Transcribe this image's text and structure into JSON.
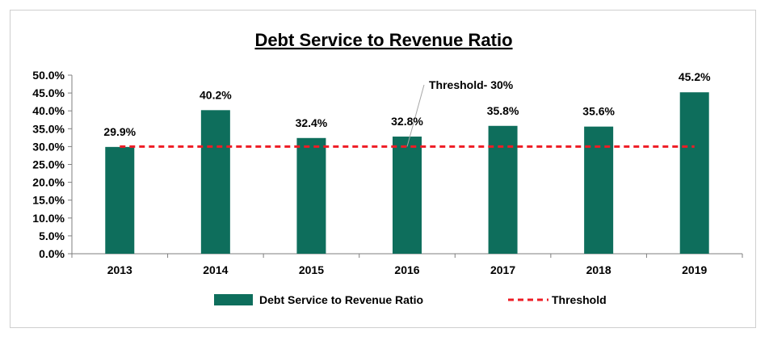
{
  "chart_data": {
    "type": "bar",
    "title": "Debt Service to Revenue Ratio",
    "categories": [
      "2013",
      "2014",
      "2015",
      "2016",
      "2017",
      "2018",
      "2019"
    ],
    "series": [
      {
        "name": "Debt Service to Revenue Ratio",
        "values": [
          29.9,
          40.2,
          32.4,
          32.8,
          35.8,
          35.6,
          45.2
        ],
        "labels": [
          "29.9%",
          "40.2%",
          "32.4%",
          "32.8%",
          "35.8%",
          "35.6%",
          "45.2%"
        ],
        "color": "#0e6e5c"
      }
    ],
    "threshold": {
      "name": "Threshold",
      "value": 30,
      "color": "#ee1c25",
      "style": "dashed"
    },
    "annotation": "Threshold- 30%",
    "ylim": [
      0,
      50
    ],
    "yticks": [
      "0.0%",
      "5.0%",
      "10.0%",
      "15.0%",
      "20.0%",
      "25.0%",
      "30.0%",
      "35.0%",
      "40.0%",
      "45.0%",
      "50.0%"
    ],
    "xlabel": "",
    "ylabel": "",
    "grid": false,
    "legend_position": "bottom"
  }
}
